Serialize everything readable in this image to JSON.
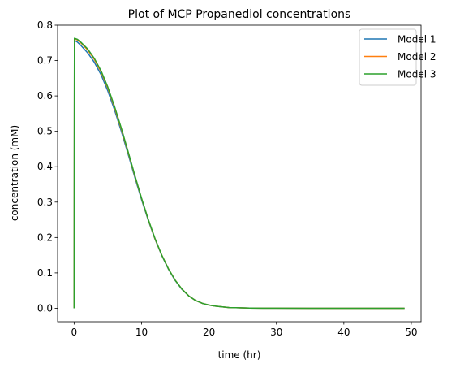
{
  "chart_data": {
    "type": "line",
    "title": "Plot of MCP Propanediol concentrations",
    "xlabel": "time (hr)",
    "ylabel": "concentration (mM)",
    "xlim": [
      -2.45,
      51.45
    ],
    "ylim": [
      -0.038,
      0.8
    ],
    "xticks": [
      0,
      10,
      20,
      30,
      40,
      50
    ],
    "yticks": [
      0.0,
      0.1,
      0.2,
      0.3,
      0.4,
      0.5,
      0.6,
      0.7,
      0.8
    ],
    "xtick_labels": [
      "0",
      "10",
      "20",
      "30",
      "40",
      "50"
    ],
    "ytick_labels": [
      "0.0",
      "0.1",
      "0.2",
      "0.3",
      "0.4",
      "0.5",
      "0.6",
      "0.7",
      "0.8"
    ],
    "grid": false,
    "legend_position": "top-right",
    "x": [
      0,
      0.05,
      0.5,
      1,
      2,
      3,
      4,
      5,
      6,
      7,
      8,
      9,
      10,
      11,
      12,
      13,
      14,
      15,
      16,
      17,
      18,
      19,
      20,
      21,
      22,
      23,
      24,
      25,
      26,
      28,
      30,
      35,
      40,
      45,
      49
    ],
    "series": [
      {
        "name": "Model 1",
        "color": "#1f77b4",
        "values": [
          0.0,
          0.757,
          0.752,
          0.743,
          0.722,
          0.695,
          0.66,
          0.614,
          0.56,
          0.5,
          0.436,
          0.37,
          0.307,
          0.248,
          0.195,
          0.149,
          0.11,
          0.078,
          0.053,
          0.035,
          0.022,
          0.014,
          0.009,
          0.006,
          0.004,
          0.002,
          0.0015,
          0.001,
          0.0006,
          0.0003,
          0.0001,
          0.0,
          0.0,
          0.0,
          0.0
        ]
      },
      {
        "name": "Model 2",
        "color": "#ff7f0e",
        "values": [
          0.0,
          0.762,
          0.758,
          0.75,
          0.73,
          0.703,
          0.668,
          0.622,
          0.567,
          0.506,
          0.441,
          0.374,
          0.31,
          0.25,
          0.196,
          0.15,
          0.111,
          0.079,
          0.054,
          0.035,
          0.022,
          0.014,
          0.009,
          0.006,
          0.004,
          0.002,
          0.0015,
          0.001,
          0.0006,
          0.0003,
          0.0001,
          0.0,
          0.0,
          0.0,
          0.0
        ]
      },
      {
        "name": "Model 3",
        "color": "#2ca02c",
        "values": [
          0.0,
          0.763,
          0.76,
          0.752,
          0.733,
          0.706,
          0.671,
          0.625,
          0.57,
          0.509,
          0.443,
          0.376,
          0.311,
          0.251,
          0.197,
          0.15,
          0.111,
          0.079,
          0.054,
          0.035,
          0.022,
          0.014,
          0.009,
          0.006,
          0.004,
          0.002,
          0.0015,
          0.001,
          0.0006,
          0.0003,
          0.0001,
          0.0,
          0.0,
          0.0,
          0.0
        ]
      }
    ]
  }
}
